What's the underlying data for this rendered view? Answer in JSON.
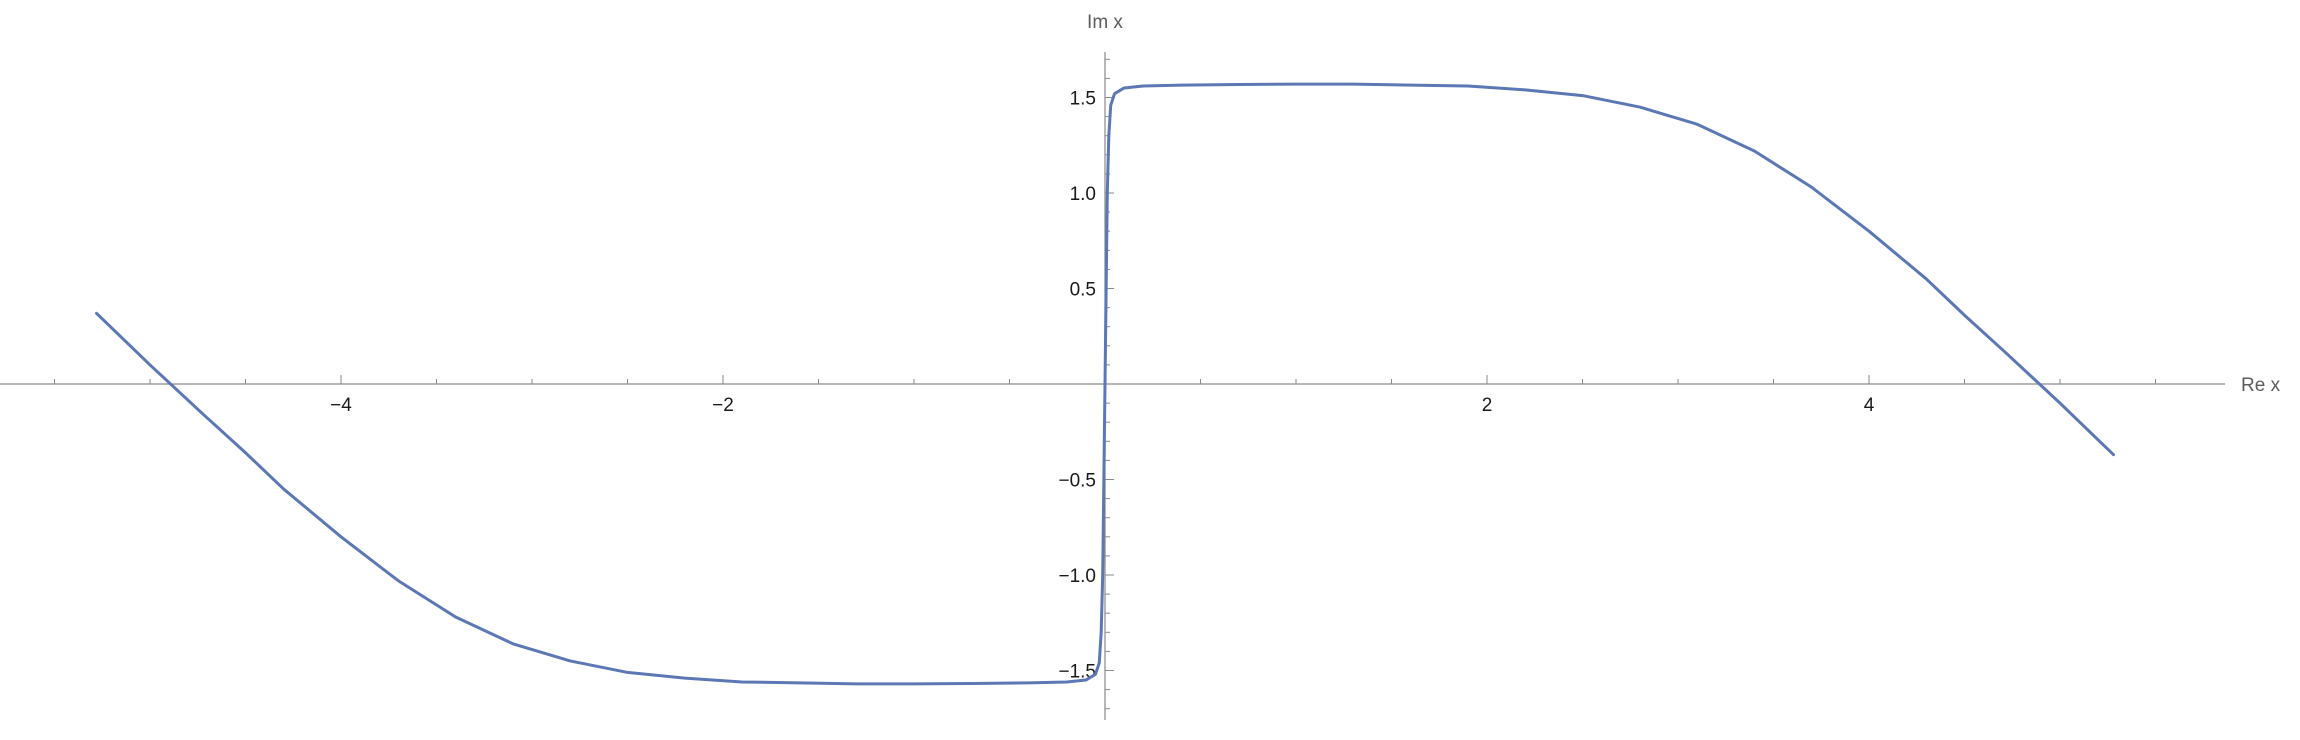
{
  "chart_data": {
    "type": "line",
    "title": "",
    "xlabel": "Re x",
    "ylabel": "Im x",
    "xlim": [
      -5.8,
      5.9
    ],
    "ylim": [
      -1.75,
      1.75
    ],
    "grid": false,
    "axes_origin": [
      0,
      0
    ],
    "x_ticks": [
      -4,
      -2,
      2,
      4
    ],
    "x_tick_labels": [
      "−4",
      "−2",
      "2",
      "4"
    ],
    "y_ticks": [
      1.5,
      1.0,
      0.5,
      -0.5,
      -1.0,
      -1.5
    ],
    "y_tick_labels": [
      "1.5",
      "1.0",
      "0.5",
      "−0.5",
      "−1.0",
      "−1.5"
    ],
    "series": [
      {
        "color": "#5b78b5",
        "x": [
          -5.28,
          -5.0,
          -4.72,
          -4.5,
          -4.3,
          -4.0,
          -3.7,
          -3.4,
          -3.1,
          -2.8,
          -2.5,
          -2.2,
          -1.9,
          -1.6,
          -1.3,
          -1.15,
          -1.0,
          -0.7,
          -0.4,
          -0.2,
          -0.1,
          -0.05,
          -0.03,
          -0.02,
          -0.012,
          -0.006,
          0.0,
          0.006,
          0.012,
          0.02,
          0.03,
          0.05,
          0.1,
          0.2,
          0.4,
          0.7,
          1.0,
          1.15,
          1.3,
          1.6,
          1.9,
          2.2,
          2.5,
          2.8,
          3.1,
          3.4,
          3.7,
          4.0,
          4.3,
          4.5,
          4.72,
          5.0,
          5.28
        ],
        "y": [
          0.37,
          0.1,
          -0.16,
          -0.36,
          -0.55,
          -0.8,
          -1.03,
          -1.22,
          -1.36,
          -1.45,
          -1.51,
          -1.54,
          -1.56,
          -1.565,
          -1.57,
          -1.57,
          -1.57,
          -1.568,
          -1.565,
          -1.56,
          -1.55,
          -1.52,
          -1.46,
          -1.3,
          -1.0,
          -0.5,
          0.0,
          0.5,
          1.0,
          1.3,
          1.46,
          1.52,
          1.55,
          1.56,
          1.565,
          1.568,
          1.57,
          1.57,
          1.57,
          1.565,
          1.56,
          1.54,
          1.51,
          1.45,
          1.36,
          1.22,
          1.03,
          0.8,
          0.55,
          0.36,
          0.16,
          -0.1,
          -0.37
        ]
      }
    ]
  }
}
